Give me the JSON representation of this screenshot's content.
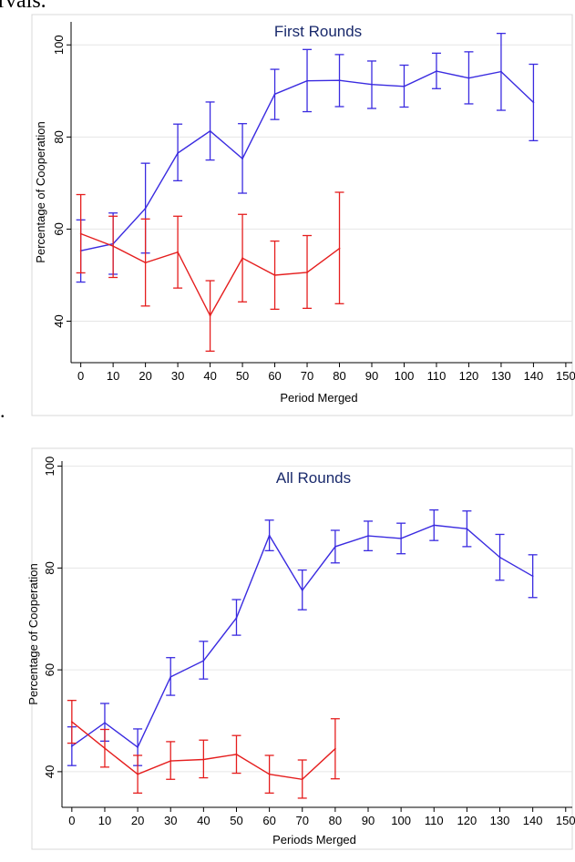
{
  "page": {
    "top_crop_text": "rvals.",
    "left_dot": "."
  },
  "colors": {
    "blue": "#3a2be0",
    "red": "#e51e1e"
  },
  "chart_data": [
    {
      "type": "line",
      "title": "First Rounds",
      "xlabel": "Period Merged",
      "ylabel": "Percentage of Cooperation",
      "x_ticks": [
        0,
        10,
        20,
        30,
        40,
        50,
        60,
        70,
        80,
        90,
        100,
        110,
        120,
        130,
        140,
        150
      ],
      "y_ticks": [
        40,
        60,
        80,
        100
      ],
      "xlim": [
        -3,
        152
      ],
      "ylim": [
        31,
        105
      ],
      "grid": true,
      "series": [
        {
          "color": "blue",
          "x": [
            0,
            10,
            20,
            30,
            40,
            50,
            60,
            70,
            80,
            90,
            100,
            110,
            120,
            130,
            140
          ],
          "y": [
            55.3,
            56.8,
            64.5,
            76.5,
            81.3,
            75.3,
            89.3,
            92.2,
            92.3,
            91.4,
            91.0,
            94.3,
            92.8,
            94.2,
            87.5
          ],
          "err_low": [
            48.5,
            50.2,
            54.8,
            70.5,
            75.0,
            67.8,
            83.8,
            85.5,
            86.6,
            86.2,
            86.5,
            90.5,
            87.2,
            85.8,
            79.2
          ],
          "err_high": [
            62.0,
            63.5,
            74.3,
            82.8,
            87.6,
            82.9,
            94.7,
            99.0,
            97.9,
            96.5,
            95.6,
            98.2,
            98.5,
            102.5,
            95.8
          ]
        },
        {
          "color": "red",
          "x": [
            0,
            10,
            20,
            30,
            40,
            50,
            60,
            70,
            80
          ],
          "y": [
            59.0,
            56.3,
            52.7,
            55.0,
            41.2,
            53.7,
            50.0,
            50.6,
            55.8
          ],
          "err_low": [
            50.5,
            49.5,
            43.3,
            47.2,
            33.5,
            44.2,
            42.6,
            42.8,
            43.8
          ],
          "err_high": [
            67.5,
            62.8,
            62.2,
            62.8,
            48.8,
            63.2,
            57.4,
            58.6,
            68.0
          ]
        }
      ]
    },
    {
      "type": "line",
      "title": "All Rounds",
      "xlabel": "Periods Merged",
      "ylabel": "Percentage of Cooperation",
      "x_ticks": [
        0,
        10,
        20,
        30,
        40,
        50,
        60,
        70,
        80,
        90,
        100,
        110,
        120,
        130,
        140,
        150
      ],
      "y_ticks": [
        40,
        60,
        80,
        100
      ],
      "xlim": [
        -3,
        152
      ],
      "ylim": [
        33,
        101
      ],
      "grid": true,
      "series": [
        {
          "color": "blue",
          "x": [
            0,
            10,
            20,
            30,
            40,
            50,
            60,
            70,
            80,
            90,
            100,
            110,
            120,
            130,
            140
          ],
          "y": [
            45.0,
            49.6,
            44.8,
            58.6,
            61.8,
            70.2,
            86.4,
            75.6,
            84.2,
            86.3,
            85.8,
            88.4,
            87.7,
            82.1,
            78.4
          ],
          "err_low": [
            41.2,
            46.0,
            41.2,
            55.0,
            58.2,
            66.8,
            83.4,
            71.8,
            81.0,
            83.4,
            82.8,
            85.4,
            84.2,
            77.6,
            74.2
          ],
          "err_high": [
            48.8,
            53.4,
            48.4,
            62.4,
            65.6,
            73.8,
            89.4,
            79.6,
            87.4,
            89.2,
            88.8,
            91.4,
            91.2,
            86.6,
            82.6
          ]
        },
        {
          "color": "red",
          "x": [
            0,
            10,
            20,
            30,
            40,
            50,
            60,
            70,
            80
          ],
          "y": [
            49.8,
            44.6,
            39.5,
            42.1,
            42.4,
            43.4,
            39.5,
            38.5,
            44.5
          ],
          "err_low": [
            45.6,
            40.9,
            35.8,
            38.5,
            38.8,
            39.7,
            35.8,
            34.8,
            38.6
          ],
          "err_high": [
            54.0,
            48.3,
            43.2,
            45.9,
            46.2,
            47.1,
            43.2,
            42.3,
            50.4
          ]
        }
      ]
    }
  ]
}
